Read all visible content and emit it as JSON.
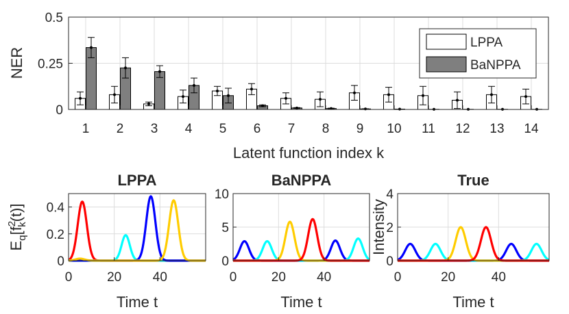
{
  "chart_data": [
    {
      "type": "bar",
      "ylabel": "NER",
      "xlabel": "Latent function index k",
      "ylim": [
        0,
        0.5
      ],
      "yticks": [
        "0",
        "0.25",
        "0.5"
      ],
      "categories": [
        "1",
        "2",
        "3",
        "4",
        "5",
        "6",
        "7",
        "8",
        "9",
        "10",
        "11",
        "12",
        "13",
        "14"
      ],
      "grid": true,
      "legend_position": "top-right",
      "series": [
        {
          "name": "LPPA",
          "color": "#ffffff",
          "values": [
            0.06,
            0.08,
            0.03,
            0.07,
            0.1,
            0.11,
            0.06,
            0.055,
            0.09,
            0.08,
            0.075,
            0.05,
            0.08,
            0.07
          ],
          "err": [
            0.035,
            0.045,
            0.01,
            0.035,
            0.025,
            0.03,
            0.03,
            0.04,
            0.04,
            0.04,
            0.05,
            0.045,
            0.045,
            0.04
          ]
        },
        {
          "name": "BaNPPA",
          "color": "#7f7f7f",
          "values": [
            0.335,
            0.225,
            0.205,
            0.13,
            0.075,
            0.02,
            0.008,
            0.005,
            0.003,
            0.002,
            0.001,
            0.001,
            0.001,
            0.001
          ],
          "err": [
            0.055,
            0.055,
            0.032,
            0.04,
            0.04,
            0.005,
            0.002,
            0.002,
            0.001,
            0.0,
            0.0,
            0.0,
            0.0,
            0.0
          ]
        }
      ]
    },
    {
      "type": "line",
      "title": "LPPA",
      "xlabel": "Time t",
      "ylabel_base": "E",
      "ylabel_sub": "q",
      "ylabel_bracket": "[f",
      "ylabel_sup2": "2",
      "ylabel_subk": "k",
      "ylabel_tail": "(t)]",
      "xlim": [
        0,
        60
      ],
      "ylim": [
        0,
        0.5
      ],
      "xticks": [
        0,
        20,
        40
      ],
      "yticks": [
        "0",
        "0.2",
        "0.4"
      ],
      "series": [
        {
          "color": "#ff0000",
          "peaks": [
            {
              "center": 6,
              "height": 0.44,
              "width": 2.0
            }
          ]
        },
        {
          "color": "#00ffff",
          "peaks": [
            {
              "center": 25,
              "height": 0.19,
              "width": 1.8
            }
          ]
        },
        {
          "color": "#0000ff",
          "peaks": [
            {
              "center": 36,
              "height": 0.48,
              "width": 2.0
            }
          ]
        },
        {
          "color": "#ffcc00",
          "peaks": [
            {
              "center": 46,
              "height": 0.45,
              "width": 2.0
            },
            {
              "center": 5,
              "height": 0.015,
              "width": 2.0
            }
          ]
        }
      ]
    },
    {
      "type": "line",
      "title": "BaNPPA",
      "xlabel": "Time t",
      "xlim": [
        0,
        60
      ],
      "ylim": [
        0,
        10
      ],
      "xticks": [
        0,
        20,
        40
      ],
      "yticks": [
        "0",
        "5",
        "10"
      ],
      "series": [
        {
          "color": "#0000ff",
          "peaks": [
            {
              "center": 5,
              "height": 2.9,
              "width": 2.0
            },
            {
              "center": 45,
              "height": 3.0,
              "width": 2.0
            }
          ]
        },
        {
          "color": "#00ffff",
          "peaks": [
            {
              "center": 15,
              "height": 2.9,
              "width": 2.0
            },
            {
              "center": 55,
              "height": 3.3,
              "width": 2.0
            }
          ]
        },
        {
          "color": "#ffcc00",
          "peaks": [
            {
              "center": 25,
              "height": 5.8,
              "width": 2.0
            }
          ]
        },
        {
          "color": "#ff0000",
          "peaks": [
            {
              "center": 35,
              "height": 6.2,
              "width": 2.0
            }
          ]
        }
      ]
    },
    {
      "type": "line",
      "title": "True",
      "xlabel": "Time t",
      "ylabel": "Intensity",
      "xlim": [
        0,
        60
      ],
      "ylim": [
        0,
        4
      ],
      "xticks": [
        0,
        20,
        40
      ],
      "yticks": [
        "0",
        "2",
        "4"
      ],
      "series": [
        {
          "color": "#0000ff",
          "peaks": [
            {
              "center": 5,
              "height": 1.0,
              "width": 2.0
            },
            {
              "center": 45,
              "height": 1.0,
              "width": 2.0
            }
          ]
        },
        {
          "color": "#00ffff",
          "peaks": [
            {
              "center": 15,
              "height": 1.0,
              "width": 2.0
            },
            {
              "center": 55,
              "height": 1.0,
              "width": 2.0
            }
          ]
        },
        {
          "color": "#ffcc00",
          "peaks": [
            {
              "center": 25,
              "height": 2.0,
              "width": 2.0
            }
          ]
        },
        {
          "color": "#ff0000",
          "peaks": [
            {
              "center": 35,
              "height": 2.0,
              "width": 2.0
            }
          ]
        }
      ]
    }
  ]
}
